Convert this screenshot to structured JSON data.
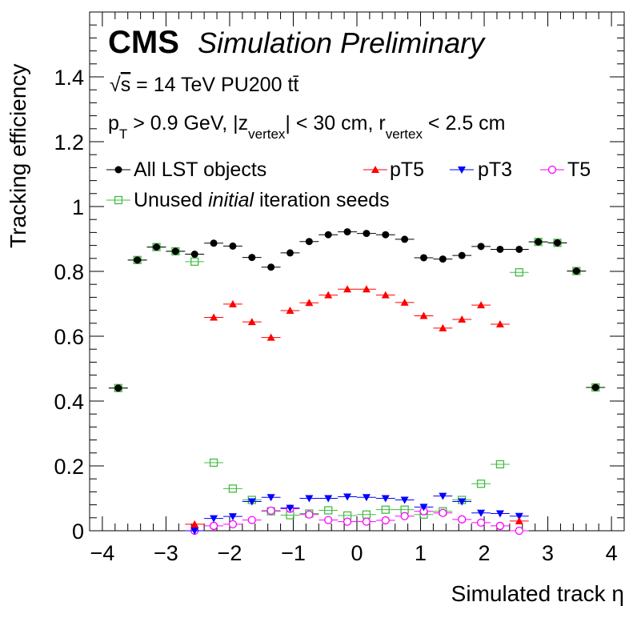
{
  "chart_data": {
    "type": "scatter",
    "xlabel": "Simulated track η",
    "ylabel": "Tracking efficiency",
    "xlim": [
      -4.2,
      4.2
    ],
    "ylim": [
      0,
      1.6
    ],
    "x_ticks": [
      "−4",
      "−3",
      "−2",
      "−1",
      "0",
      "1",
      "2",
      "3",
      "4"
    ],
    "y_ticks": [
      "0",
      "0.2",
      "0.4",
      "0.6",
      "0.8",
      "1",
      "1.2",
      "1.4"
    ],
    "grid": false,
    "legend_placement": "top",
    "bin_half_width": 0.15,
    "text": {
      "cms": "CMS",
      "sim": "Simulation Preliminary",
      "line1": {
        "sqrt": "√",
        "s": "s",
        "energy": " = 14 TeV PU200 ",
        "tt": "tt̄"
      },
      "line2": {
        "p": "p",
        "T": "T",
        "a": " > 0.9 GeV, |z",
        "vertex1": "vertex",
        "b": "| < 30 cm, r",
        "vertex2": "vertex",
        "c": " < 2.5 cm"
      }
    },
    "series": [
      {
        "name": "All LST objects",
        "color": "#000000",
        "marker": "circle-filled",
        "x": [
          -3.75,
          -3.45,
          -3.15,
          -2.85,
          -2.55,
          -2.25,
          -1.95,
          -1.65,
          -1.35,
          -1.05,
          -0.75,
          -0.45,
          -0.15,
          0.15,
          0.45,
          0.75,
          1.05,
          1.35,
          1.65,
          1.95,
          2.25,
          2.55,
          2.85,
          3.15,
          3.45,
          3.75
        ],
        "y": [
          0.44,
          0.835,
          0.875,
          0.862,
          0.853,
          0.887,
          0.878,
          0.843,
          0.813,
          0.857,
          0.892,
          0.913,
          0.922,
          0.917,
          0.913,
          0.899,
          0.842,
          0.838,
          0.849,
          0.877,
          0.868,
          0.868,
          0.891,
          0.888,
          0.801,
          0.442
        ]
      },
      {
        "name": "pT5",
        "color": "#ff0000",
        "marker": "triangle-up-filled",
        "x": [
          -2.55,
          -2.25,
          -1.95,
          -1.65,
          -1.35,
          -1.05,
          -0.75,
          -0.45,
          -0.15,
          0.15,
          0.45,
          0.75,
          1.05,
          1.35,
          1.65,
          1.95,
          2.25,
          2.55
        ],
        "y": [
          0.02,
          0.658,
          0.699,
          0.644,
          0.596,
          0.679,
          0.703,
          0.727,
          0.745,
          0.745,
          0.727,
          0.704,
          0.663,
          0.625,
          0.652,
          0.696,
          0.637,
          0.03
        ]
      },
      {
        "name": "pT3",
        "color": "#0000ff",
        "marker": "triangle-down-filled",
        "x": [
          -2.55,
          -2.25,
          -1.95,
          -1.65,
          -1.35,
          -1.05,
          -0.75,
          -0.45,
          -0.15,
          0.15,
          0.45,
          0.75,
          1.05,
          1.35,
          1.65,
          1.95,
          2.25,
          2.55
        ],
        "y": [
          0.0,
          0.038,
          0.044,
          0.09,
          0.103,
          0.07,
          0.1,
          0.1,
          0.105,
          0.103,
          0.1,
          0.095,
          0.073,
          0.107,
          0.09,
          0.055,
          0.053,
          0.045
        ]
      },
      {
        "name": "T5",
        "color": "#ff00ff",
        "marker": "circle-open",
        "x": [
          -2.55,
          -2.25,
          -1.95,
          -1.65,
          -1.35,
          -1.05,
          -0.75,
          -0.45,
          -0.15,
          0.15,
          0.45,
          0.75,
          1.05,
          1.35,
          1.65,
          1.95,
          2.25,
          2.55
        ],
        "y": [
          0.0,
          0.015,
          0.02,
          0.033,
          0.062,
          0.068,
          0.05,
          0.033,
          0.028,
          0.028,
          0.032,
          0.045,
          0.06,
          0.055,
          0.035,
          0.025,
          0.015,
          0.0
        ]
      },
      {
        "name": "Unused initial iteration seeds",
        "name_parts": [
          "Unused ",
          "initial",
          " iteration seeds"
        ],
        "color": "#44bb44",
        "marker": "square-open",
        "x": [
          -3.75,
          -3.45,
          -3.15,
          -2.85,
          -2.55,
          -2.25,
          -1.95,
          -1.65,
          -1.35,
          -1.05,
          -0.75,
          -0.45,
          -0.15,
          0.15,
          0.45,
          0.75,
          1.05,
          1.35,
          1.65,
          1.95,
          2.25,
          2.55,
          2.85,
          3.15,
          3.45,
          3.75
        ],
        "y": [
          0.44,
          0.835,
          0.875,
          0.862,
          0.83,
          0.21,
          0.13,
          0.095,
          0.06,
          0.048,
          0.053,
          0.063,
          0.047,
          0.05,
          0.065,
          0.065,
          0.05,
          0.06,
          0.095,
          0.145,
          0.205,
          0.797,
          0.891,
          0.888,
          0.801,
          0.442
        ]
      }
    ]
  }
}
